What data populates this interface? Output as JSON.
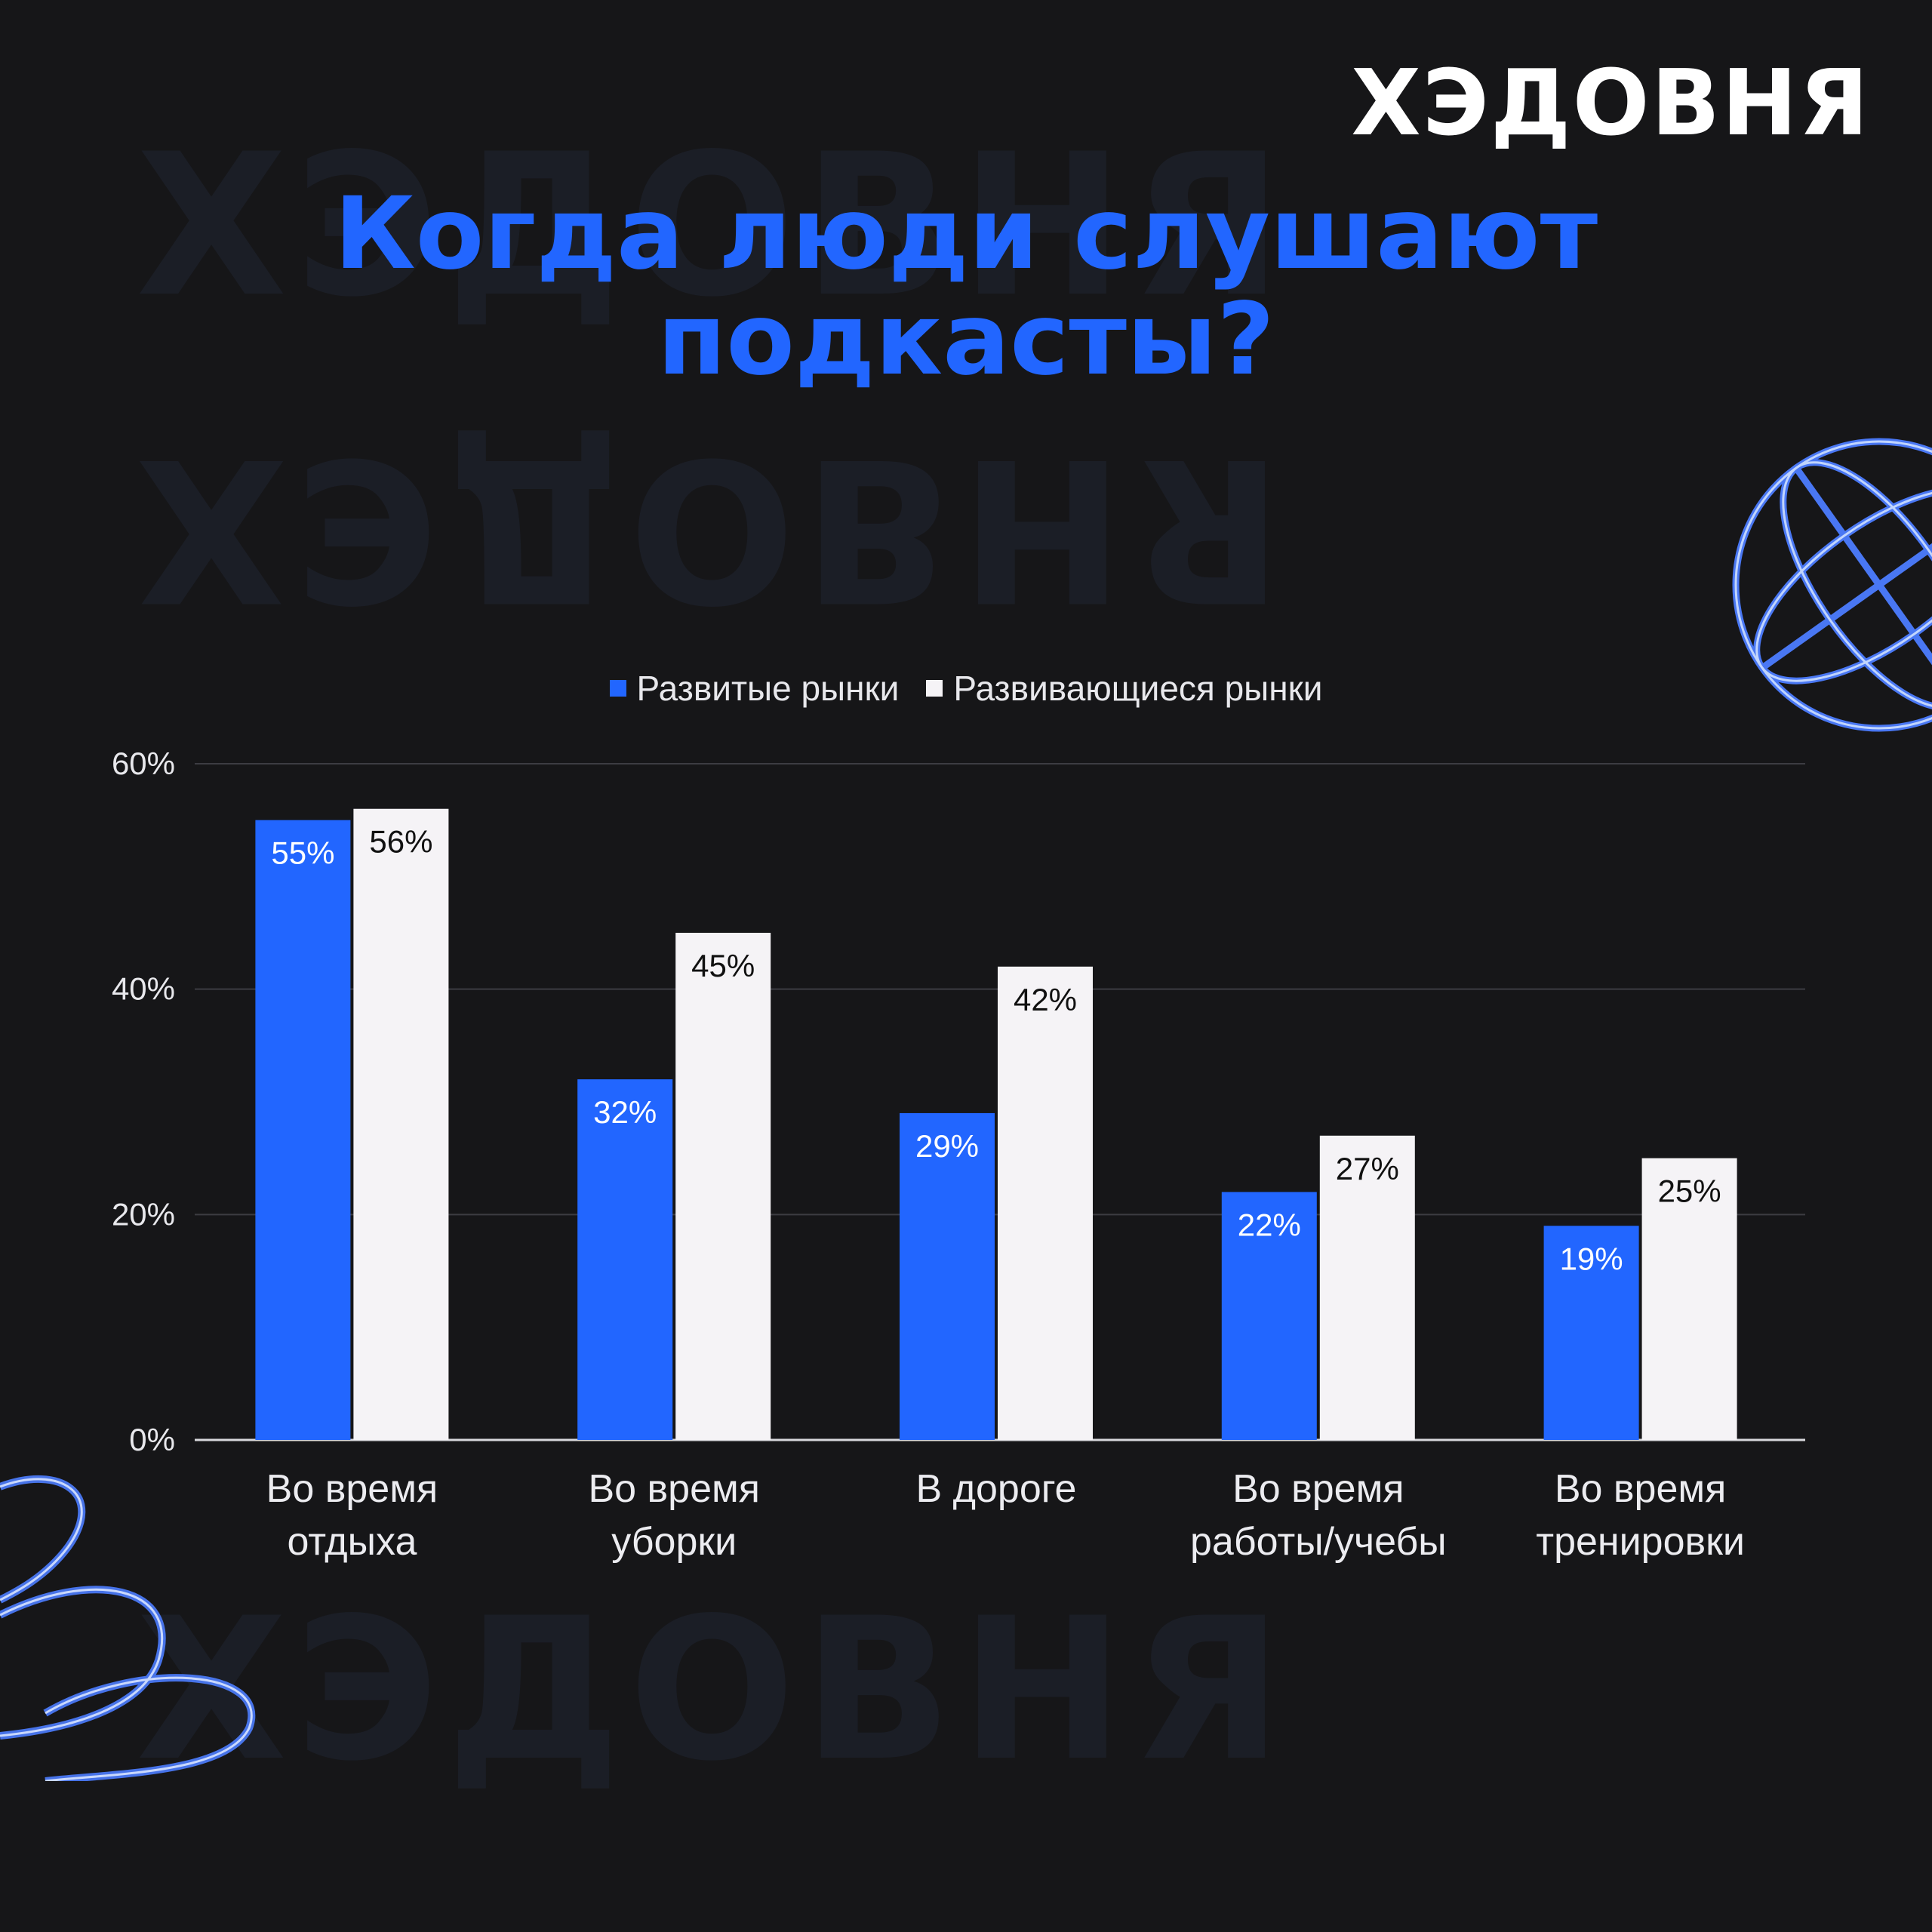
{
  "brand": "ХЭДОВНЯ",
  "title_lines": [
    "Когда люди слушают",
    "подкасты?"
  ],
  "colors": {
    "background": "#161618",
    "developed": "#2266ff",
    "developing": "#f5f3f6",
    "accent": "#2266ff"
  },
  "chart_data": {
    "type": "bar",
    "categories": [
      [
        "Во время",
        "отдыха"
      ],
      [
        "Во время",
        "уборки"
      ],
      [
        "В дороге"
      ],
      [
        "Во время",
        "работы/учебы"
      ],
      [
        "Во время",
        "тренировки"
      ]
    ],
    "series": [
      {
        "name": "Развитые рынки",
        "values": [
          55,
          32,
          29,
          22,
          19
        ],
        "labels": [
          "55%",
          "32%",
          "29%",
          "22%",
          "19%"
        ]
      },
      {
        "name": "Развивающиеся рынки",
        "values": [
          56,
          45,
          42,
          27,
          25
        ],
        "labels": [
          "56%",
          "45%",
          "42%",
          "27%",
          "25%"
        ]
      }
    ],
    "y_ticks": [
      0,
      20,
      40,
      60
    ],
    "y_tick_labels": [
      "0%",
      "20%",
      "40%",
      "60%"
    ],
    "ylim": [
      0,
      60
    ],
    "grid": true,
    "legend_position": "top-center"
  }
}
